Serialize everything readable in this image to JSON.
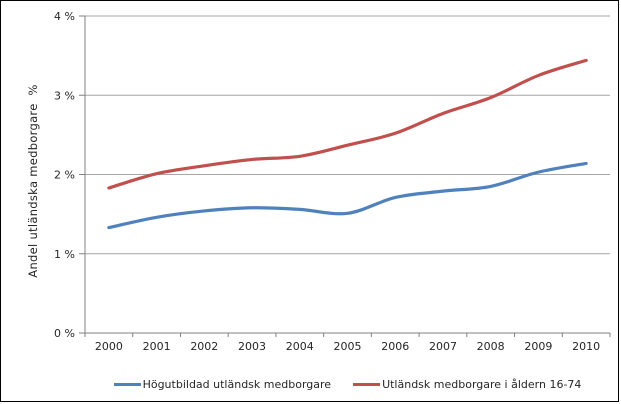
{
  "chart_data": {
    "type": "line",
    "title": "",
    "xlabel": "",
    "ylabel": "Andel utländska medborgare  %",
    "categories": [
      "2000",
      "2001",
      "2002",
      "2003",
      "2004",
      "2005",
      "2006",
      "2007",
      "2008",
      "2009",
      "2010"
    ],
    "series": [
      {
        "name": "Högutbildad utländsk medborgare",
        "color": "#4F81BD",
        "values": [
          1.33,
          1.46,
          1.54,
          1.58,
          1.56,
          1.51,
          1.71,
          1.79,
          1.85,
          2.03,
          2.14
        ]
      },
      {
        "name": "Utländsk medborgare i åldern 16-74",
        "color": "#C0504D",
        "values": [
          1.83,
          2.01,
          2.11,
          2.19,
          2.23,
          2.37,
          2.52,
          2.77,
          2.97,
          3.25,
          3.44
        ]
      }
    ],
    "ylim": [
      0,
      4
    ],
    "yticks": [
      {
        "value": 0,
        "label": "0 %"
      },
      {
        "value": 1,
        "label": "1 %"
      },
      {
        "value": 2,
        "label": "2 %"
      },
      {
        "value": 3,
        "label": "3 %"
      },
      {
        "value": 4,
        "label": "4 %"
      }
    ],
    "grid": true,
    "legend_position": "bottom",
    "axis_color": "#808080",
    "grid_color": "#A6A6A6",
    "text_color": "#262626"
  }
}
